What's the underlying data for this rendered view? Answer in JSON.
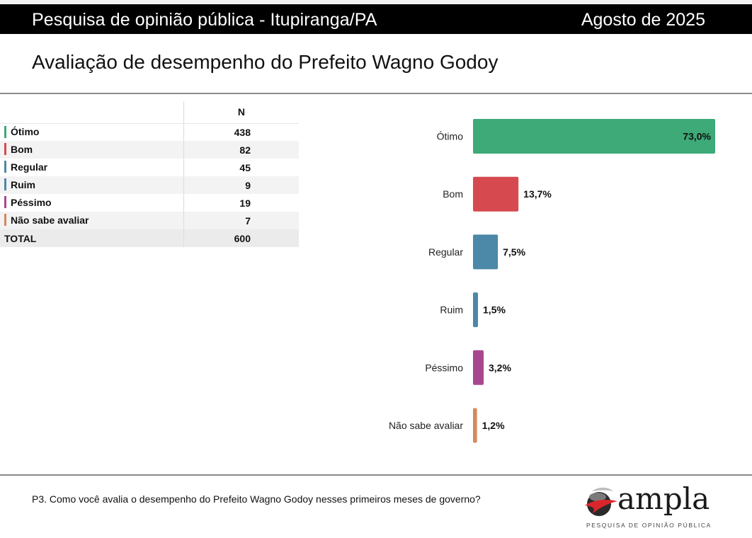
{
  "header": {
    "title": "Pesquisa de opinião pública - Itupiranga/PA",
    "date": "Agosto de 2025"
  },
  "slide": {
    "title": "Avaliação de desempenho do Prefeito Wagno Godoy",
    "question": "P3. Como você avalia o desempenho do Prefeito Wagno Godoy nesses primeiros meses de governo?"
  },
  "table": {
    "column_header": "N",
    "rows": [
      {
        "label": "Ótimo",
        "n": "438",
        "color": "#3daa78"
      },
      {
        "label": "Bom",
        "n": "82",
        "color": "#d64a4f"
      },
      {
        "label": "Regular",
        "n": "45",
        "color": "#4c88a8"
      },
      {
        "label": "Ruim",
        "n": "9",
        "color": "#4c88a8"
      },
      {
        "label": "Péssimo",
        "n": "19",
        "color": "#a8478f"
      },
      {
        "label": "Não sabe avaliar",
        "n": "7",
        "color": "#d48a5c"
      }
    ],
    "total_label": "TOTAL",
    "total_n": "600"
  },
  "chart_data": {
    "type": "bar",
    "orientation": "horizontal",
    "categories": [
      "Ótimo",
      "Bom",
      "Regular",
      "Ruim",
      "Péssimo",
      "Não sabe avaliar"
    ],
    "values": [
      73.0,
      13.7,
      7.5,
      1.5,
      3.2,
      1.2
    ],
    "value_labels": [
      "73,0%",
      "13,7%",
      "7,5%",
      "1,5%",
      "3,2%",
      "1,2%"
    ],
    "colors": [
      "#3daa78",
      "#d64a4f",
      "#4c88a8",
      "#4c88a8",
      "#a8478f",
      "#d48a5c"
    ],
    "xlim": [
      0,
      73
    ],
    "grid": false,
    "legend": "none"
  },
  "logo": {
    "word": "ampla",
    "tagline": "PESQUISA DE OPINIÃO PÚBLICA"
  }
}
